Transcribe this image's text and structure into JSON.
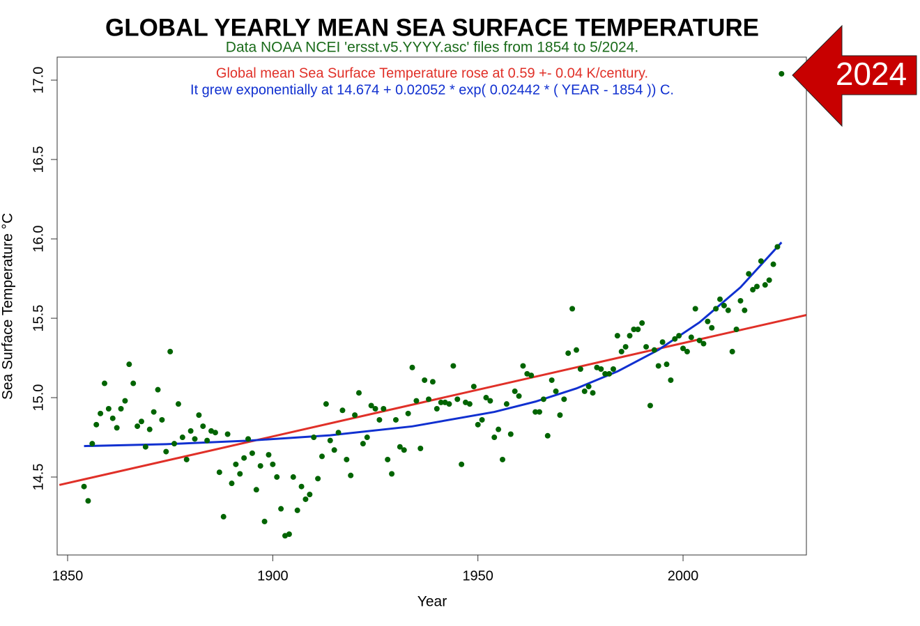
{
  "chart_data": {
    "type": "scatter",
    "title": "GLOBAL YEARLY MEAN SEA SURFACE TEMPERATURE",
    "subtitle": "Data NOAA NCEI 'ersst.v5.YYYY.asc' files from 1854 to 5/2024.",
    "annotations": [
      {
        "text": "Global mean Sea Surface Temperature rose at 0.59 +- 0.04 K/century.",
        "color": "#e03028"
      },
      {
        "text": "It grew exponentially at 14.674 + 0.02052 * exp( 0.02442 * ( YEAR - 1854 )) C.",
        "color": "#1030d0"
      }
    ],
    "callout": {
      "text": "2024",
      "color": "#c80000"
    },
    "xlabel": "Year",
    "ylabel": "Sea Surface Temperature °C",
    "xlim": [
      1847.45,
      2030.06
    ],
    "ylim": [
      14.009,
      17.145
    ],
    "xticks": [
      1850,
      1900,
      1950,
      2000
    ],
    "yticks": [
      {
        "value": 14.5,
        "label": "14.5"
      },
      {
        "value": 15,
        "label": "15.0"
      },
      {
        "value": 15.5,
        "label": "15.5"
      },
      {
        "value": 16,
        "label": "16.0"
      },
      {
        "value": 16.5,
        "label": "16.5"
      },
      {
        "value": 17,
        "label": "17.0"
      }
    ],
    "grid": false,
    "points": {
      "color": "#006400",
      "x": [
        1854,
        1855,
        1856,
        1857,
        1858,
        1859,
        1860,
        1861,
        1862,
        1863,
        1864,
        1865,
        1866,
        1867,
        1868,
        1869,
        1870,
        1871,
        1872,
        1873,
        1874,
        1875,
        1876,
        1877,
        1878,
        1879,
        1880,
        1881,
        1882,
        1883,
        1884,
        1885,
        1886,
        1887,
        1888,
        1889,
        1890,
        1891,
        1892,
        1893,
        1894,
        1895,
        1896,
        1897,
        1898,
        1899,
        1900,
        1901,
        1902,
        1903,
        1904,
        1905,
        1906,
        1907,
        1908,
        1909,
        1910,
        1911,
        1912,
        1913,
        1914,
        1915,
        1916,
        1917,
        1918,
        1919,
        1920,
        1921,
        1922,
        1923,
        1924,
        1925,
        1926,
        1927,
        1928,
        1929,
        1930,
        1931,
        1932,
        1933,
        1934,
        1935,
        1936,
        1937,
        1938,
        1939,
        1940,
        1941,
        1942,
        1943,
        1944,
        1945,
        1946,
        1947,
        1948,
        1949,
        1950,
        1951,
        1952,
        1953,
        1954,
        1955,
        1956,
        1957,
        1958,
        1959,
        1960,
        1961,
        1962,
        1963,
        1964,
        1965,
        1966,
        1967,
        1968,
        1969,
        1970,
        1971,
        1972,
        1973,
        1974,
        1975,
        1976,
        1977,
        1978,
        1979,
        1980,
        1981,
        1982,
        1983,
        1984,
        1985,
        1986,
        1987,
        1988,
        1989,
        1990,
        1991,
        1992,
        1993,
        1994,
        1995,
        1996,
        1997,
        1998,
        1999,
        2000,
        2001,
        2002,
        2003,
        2004,
        2005,
        2006,
        2007,
        2008,
        2009,
        2010,
        2011,
        2012,
        2013,
        2014,
        2015,
        2016,
        2017,
        2018,
        2019,
        2020,
        2021,
        2022,
        2023,
        2024
      ],
      "values": [
        14.44,
        14.35,
        14.71,
        14.83,
        14.9,
        15.09,
        14.93,
        14.87,
        14.81,
        14.93,
        14.98,
        15.21,
        15.09,
        14.82,
        14.85,
        14.69,
        14.8,
        14.91,
        15.05,
        14.86,
        14.66,
        15.29,
        14.71,
        14.96,
        14.75,
        14.61,
        14.79,
        14.74,
        14.89,
        14.82,
        14.73,
        14.79,
        14.78,
        14.53,
        14.25,
        14.77,
        14.46,
        14.58,
        14.52,
        14.62,
        14.74,
        14.65,
        14.42,
        14.57,
        14.22,
        14.64,
        14.58,
        14.5,
        14.3,
        14.13,
        14.14,
        14.5,
        14.29,
        14.44,
        14.36,
        14.39,
        14.75,
        14.49,
        14.63,
        14.96,
        14.73,
        14.67,
        14.78,
        14.92,
        14.61,
        14.51,
        14.89,
        15.03,
        14.71,
        14.75,
        14.95,
        14.93,
        14.86,
        14.93,
        14.61,
        14.52,
        14.86,
        14.69,
        14.67,
        14.9,
        15.19,
        14.98,
        14.68,
        15.11,
        14.99,
        15.1,
        14.93,
        14.97,
        14.97,
        14.96,
        15.2,
        14.99,
        14.58,
        14.97,
        14.96,
        15.07,
        14.83,
        14.86,
        15.0,
        14.98,
        14.75,
        14.8,
        14.61,
        14.96,
        14.77,
        15.04,
        15.01,
        15.2,
        15.15,
        15.14,
        14.91,
        14.91,
        14.99,
        14.76,
        15.11,
        15.04,
        14.89,
        14.99,
        15.28,
        15.56,
        15.3,
        15.18,
        15.04,
        15.07,
        15.03,
        15.19,
        15.18,
        15.15,
        15.15,
        15.18,
        15.39,
        15.29,
        15.32,
        15.39,
        15.43,
        15.43,
        15.47,
        15.32,
        14.95,
        15.3,
        15.2,
        15.35,
        15.21,
        15.11,
        15.37,
        15.39,
        15.31,
        15.29,
        15.38,
        15.56,
        15.36,
        15.34,
        15.48,
        15.44,
        15.56,
        15.62,
        15.58,
        15.55,
        15.29,
        15.43,
        15.61,
        15.55,
        15.78,
        15.68,
        15.7,
        15.86,
        15.71,
        15.74,
        15.84,
        15.95,
        17.04
      ]
    },
    "fits": [
      {
        "color": "#e03028",
        "x": [
          1848,
          2030
        ],
        "values": [
          14.45,
          15.52
        ]
      },
      {
        "color": "#1030d0",
        "x": [
          1854,
          1874,
          1894,
          1914,
          1934,
          1954,
          1964,
          1974,
          1984,
          1994,
          2004,
          2014,
          2024
        ],
        "values": [
          14.695,
          14.707,
          14.729,
          14.763,
          14.819,
          14.91,
          14.975,
          15.058,
          15.165,
          15.301,
          15.474,
          15.695,
          15.978
        ]
      }
    ]
  }
}
